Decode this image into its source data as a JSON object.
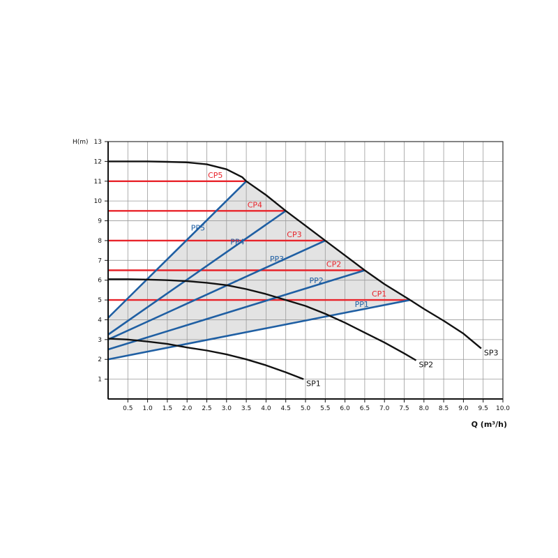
{
  "chart_data": {
    "type": "line",
    "xlabel": "Q (m³/h)",
    "ylabel": "H(m)",
    "xlim": [
      0,
      10
    ],
    "ylim": [
      0,
      13
    ],
    "x_ticks": [
      "0.5",
      "1.0",
      "1.5",
      "2.0",
      "2.5",
      "3.0",
      "3.5",
      "4.0",
      "4.5",
      "5.0",
      "5.5",
      "6.0",
      "6.5",
      "7.0",
      "7.5",
      "8.0",
      "8.5",
      "9.0",
      "9.5",
      "10.0"
    ],
    "y_ticks": [
      "1",
      "2",
      "3",
      "4",
      "5",
      "6",
      "7",
      "8",
      "9",
      "10",
      "11",
      "12",
      "13"
    ],
    "grid": true,
    "colors": {
      "speed": "#111111",
      "constant_pressure": "#e8232a",
      "proportional_pressure": "#1f5fa3",
      "region": "#e3e3e3"
    },
    "speed_curves": [
      {
        "name": "SP1",
        "points": [
          [
            0,
            3.05
          ],
          [
            0.5,
            3.0
          ],
          [
            1.0,
            2.9
          ],
          [
            1.5,
            2.78
          ],
          [
            2.0,
            2.6
          ],
          [
            2.5,
            2.45
          ],
          [
            3.0,
            2.25
          ],
          [
            3.5,
            2.0
          ],
          [
            4.0,
            1.7
          ],
          [
            4.5,
            1.35
          ],
          [
            4.95,
            1.0
          ]
        ]
      },
      {
        "name": "SP2",
        "points": [
          [
            0,
            6.05
          ],
          [
            0.5,
            6.05
          ],
          [
            1.0,
            6.03
          ],
          [
            1.5,
            6.0
          ],
          [
            2.0,
            5.95
          ],
          [
            2.5,
            5.87
          ],
          [
            3.0,
            5.75
          ],
          [
            3.5,
            5.55
          ],
          [
            4.0,
            5.3
          ],
          [
            4.5,
            5.0
          ],
          [
            5.0,
            4.7
          ],
          [
            5.5,
            4.3
          ],
          [
            6.0,
            3.85
          ],
          [
            6.5,
            3.35
          ],
          [
            7.0,
            2.85
          ],
          [
            7.5,
            2.3
          ],
          [
            7.8,
            1.95
          ]
        ]
      },
      {
        "name": "SP3",
        "points": [
          [
            0,
            12.0
          ],
          [
            0.5,
            12.0
          ],
          [
            1.0,
            12.0
          ],
          [
            1.5,
            11.98
          ],
          [
            2.0,
            11.95
          ],
          [
            2.5,
            11.85
          ],
          [
            3.0,
            11.6
          ],
          [
            3.4,
            11.2
          ],
          [
            3.5,
            11.0
          ],
          [
            4.0,
            10.3
          ],
          [
            4.5,
            9.5
          ],
          [
            5.0,
            8.75
          ],
          [
            5.5,
            8.0
          ],
          [
            6.0,
            7.25
          ],
          [
            6.5,
            6.5
          ],
          [
            7.0,
            5.8
          ],
          [
            7.65,
            5.0
          ],
          [
            8.0,
            4.55
          ],
          [
            8.5,
            3.95
          ],
          [
            9.0,
            3.3
          ],
          [
            9.45,
            2.55
          ]
        ]
      }
    ],
    "constant_pressure": [
      {
        "name": "CP1",
        "h": 5.0,
        "q_max": 7.65
      },
      {
        "name": "CP2",
        "h": 6.5,
        "q_max": 6.5
      },
      {
        "name": "CP3",
        "h": 8.0,
        "q_max": 5.5
      },
      {
        "name": "CP4",
        "h": 9.5,
        "q_max": 4.5
      },
      {
        "name": "CP5",
        "h": 11.0,
        "q_max": 3.5
      }
    ],
    "proportional_pressure": [
      {
        "name": "PP1",
        "h0": 2.0,
        "q_end": 7.65,
        "h_end": 5.0
      },
      {
        "name": "PP2",
        "h0": 2.5,
        "q_end": 6.5,
        "h_end": 6.5
      },
      {
        "name": "PP3",
        "h0": 3.0,
        "q_end": 5.5,
        "h_end": 8.0
      },
      {
        "name": "PP4",
        "h0": 3.25,
        "q_end": 4.5,
        "h_end": 9.5
      },
      {
        "name": "PP5",
        "h0": 4.1,
        "q_end": 3.5,
        "h_end": 11.0
      }
    ]
  }
}
